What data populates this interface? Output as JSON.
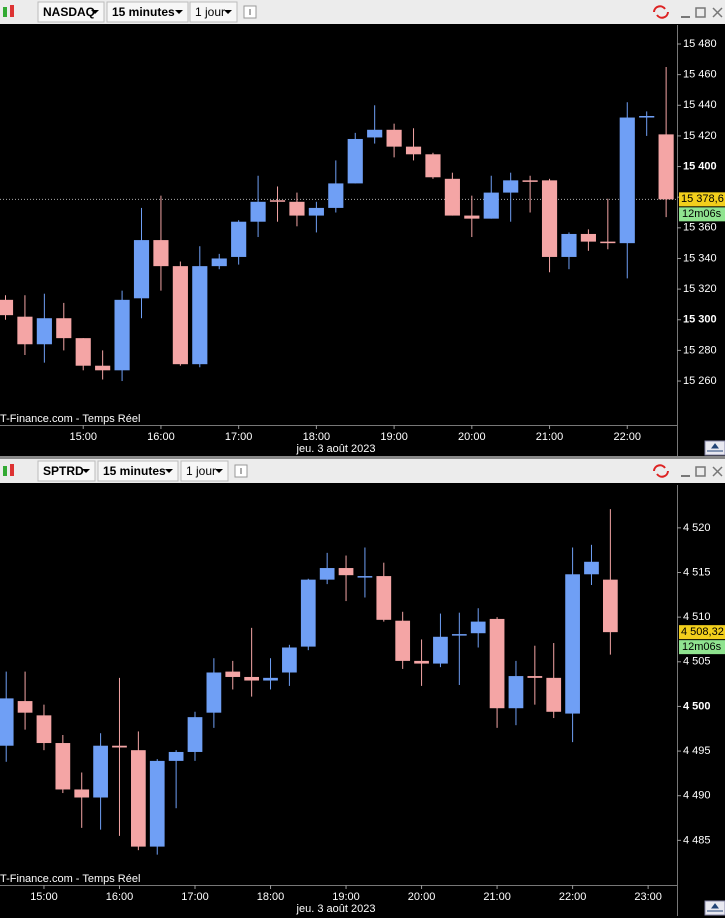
{
  "chart_data": [
    {
      "type": "candlestick",
      "symbol": "NASDAQ",
      "interval": "15 minutes",
      "range": "1 jour",
      "source": "T-Finance.com - Temps Réel",
      "xlabel": "jeu. 3 août 2023",
      "categories": [
        null,
        null,
        null,
        null,
        "15:00",
        null,
        null,
        null,
        "16:00",
        null,
        null,
        null,
        "17:00",
        null,
        null,
        null,
        "18:00",
        null,
        null,
        null,
        "19:00",
        null,
        null,
        null,
        "20:00",
        null,
        null,
        null,
        "21:00",
        null,
        null,
        null,
        "22:00",
        null,
        null
      ],
      "open": [
        15313,
        15302,
        15284,
        15301,
        15288,
        15270,
        15267,
        15314,
        15352,
        15335,
        15271,
        15335,
        15341,
        15364,
        15378,
        15377,
        15368,
        15373,
        15389,
        15419,
        15424,
        15413,
        15408,
        15392,
        15368,
        15366,
        15383,
        15391,
        15391,
        15341,
        15356,
        15351,
        15350,
        15432,
        15421
      ],
      "high": [
        15316,
        15316,
        15317,
        15311,
        15288,
        15280,
        15319,
        15373,
        15381,
        15338,
        15348,
        15343,
        15365,
        15394,
        15387,
        15383,
        15377,
        15404,
        15422,
        15440,
        15428,
        15425,
        15409,
        15396,
        15381,
        15394,
        15396,
        15394,
        15392,
        15357,
        15359,
        15379,
        15442,
        15436,
        15465
      ],
      "low": [
        15300,
        15277,
        15272,
        15280,
        15267,
        15261,
        15260,
        15301,
        15319,
        15270,
        15269,
        15333,
        15336,
        15354,
        15364,
        15361,
        15357,
        15370,
        15389,
        15415,
        15406,
        15404,
        15392,
        15368,
        15354,
        15366,
        15364,
        15370,
        15331,
        15333,
        15345,
        15346,
        15327,
        15420,
        15367
      ],
      "close": [
        15303,
        15284,
        15301,
        15288,
        15270,
        15267,
        15313,
        15352,
        15335,
        15271,
        15335,
        15340,
        15364,
        15377,
        15377,
        15368,
        15373,
        15389,
        15418,
        15424,
        15413,
        15408,
        15393,
        15368,
        15366,
        15383,
        15391,
        15390,
        15341,
        15356,
        15351,
        15350,
        15432,
        15433,
        15378.6
      ],
      "up_color": "#6f9ff5",
      "down_color": "#f4a5a5",
      "ylim": [
        15231.3,
        15492.4
      ],
      "yticks": [
        {
          "value": 15260,
          "label": "15 260"
        },
        {
          "value": 15280,
          "label": "15 280"
        },
        {
          "value": 15300,
          "label": "15 300"
        },
        {
          "value": 15320,
          "label": "15 320"
        },
        {
          "value": 15340,
          "label": "15 340"
        },
        {
          "value": 15360,
          "label": "15 360"
        },
        {
          "value": 15380,
          "label": "15 380"
        },
        {
          "value": 15400,
          "label": "15 400"
        },
        {
          "value": 15420,
          "label": "15 420"
        },
        {
          "value": 15440,
          "label": "15 440"
        },
        {
          "value": 15460,
          "label": "15 460"
        },
        {
          "value": 15480,
          "label": "15 480"
        }
      ],
      "last_price": {
        "value": 15378.6,
        "label": "15 378,6"
      },
      "timer": "12m06s",
      "price_line": true
    },
    {
      "type": "candlestick",
      "symbol": "SPTRD",
      "interval": "15 minutes",
      "range": "1 jour",
      "source": "T-Finance.com - Temps Réel",
      "xlabel": "jeu. 3 août 2023",
      "categories": [
        null,
        null,
        "15:00",
        null,
        null,
        null,
        "16:00",
        null,
        null,
        null,
        "17:00",
        null,
        null,
        null,
        "18:00",
        null,
        null,
        null,
        "19:00",
        null,
        null,
        null,
        "20:00",
        null,
        null,
        null,
        "21:00",
        null,
        null,
        null,
        "22:00",
        null,
        null,
        null,
        "23:00"
      ],
      "open": [
        4495.6,
        4500.6,
        4499.0,
        4495.9,
        4490.7,
        4489.8,
        4495.6,
        4495.1,
        4484.3,
        4493.9,
        4494.9,
        4499.3,
        4503.9,
        4503.3,
        4502.9,
        4503.8,
        4506.7,
        4514.2,
        4515.5,
        4514.5,
        4514.6,
        4509.6,
        4505.1,
        4504.8,
        4508.0,
        4508.2,
        4509.8,
        4499.8,
        4503.4,
        4503.2,
        4499.2,
        4514.8,
        4514.2,
        null,
        null
      ],
      "high": [
        4503.9,
        4503.9,
        4500.2,
        4496.8,
        4492.6,
        4497.0,
        4503.2,
        4497.2,
        4494.1,
        4495.1,
        4499.4,
        4505.4,
        4505.1,
        4508.8,
        4505.4,
        4506.9,
        4514.3,
        4517.2,
        4516.9,
        4517.8,
        4516.1,
        4510.6,
        4507.5,
        4510.4,
        4510.5,
        4511.0,
        4510.0,
        4505.1,
        4506.8,
        4507.1,
        4517.8,
        4518.1,
        4522.1,
        null,
        null
      ],
      "low": [
        4493.8,
        4497.4,
        4495.1,
        4490.3,
        4486.4,
        4486.2,
        4485.5,
        4483.9,
        4483.4,
        4488.6,
        4493.9,
        4497.6,
        4501.9,
        4501.1,
        4501.9,
        4502.3,
        4506.3,
        4513.7,
        4511.8,
        4512.2,
        4509.5,
        4504.2,
        4502.3,
        4504.4,
        4502.4,
        4506.6,
        4497.6,
        4497.9,
        4500.2,
        4498.7,
        4496.0,
        4513.6,
        4505.8,
        null,
        null
      ],
      "close": [
        4500.9,
        4499.3,
        4495.9,
        4490.7,
        4489.8,
        4495.6,
        4495.4,
        4484.3,
        4493.9,
        4494.9,
        4498.8,
        4503.8,
        4503.3,
        4502.9,
        4503.2,
        4506.6,
        4514.2,
        4515.5,
        4514.7,
        4514.6,
        4509.7,
        4505.1,
        4504.8,
        4507.8,
        4508.1,
        4509.5,
        4499.8,
        4503.4,
        4503.2,
        4499.4,
        4514.8,
        4516.2,
        4508.32,
        null,
        null
      ],
      "up_color": "#6f9ff5",
      "down_color": "#f4a5a5",
      "ylim": [
        4480.0,
        4524.8
      ],
      "yticks": [
        {
          "value": 4485,
          "label": "4 485"
        },
        {
          "value": 4490,
          "label": "4 490"
        },
        {
          "value": 4495,
          "label": "4 495"
        },
        {
          "value": 4500,
          "label": "4 500"
        },
        {
          "value": 4505,
          "label": "4 505"
        },
        {
          "value": 4510,
          "label": "4 510"
        },
        {
          "value": 4515,
          "label": "4 515"
        },
        {
          "value": 4520,
          "label": "4 520"
        }
      ],
      "last_price": {
        "value": 4508.32,
        "label": "4 508,32"
      },
      "timer": "12m06s",
      "price_line": false
    }
  ]
}
